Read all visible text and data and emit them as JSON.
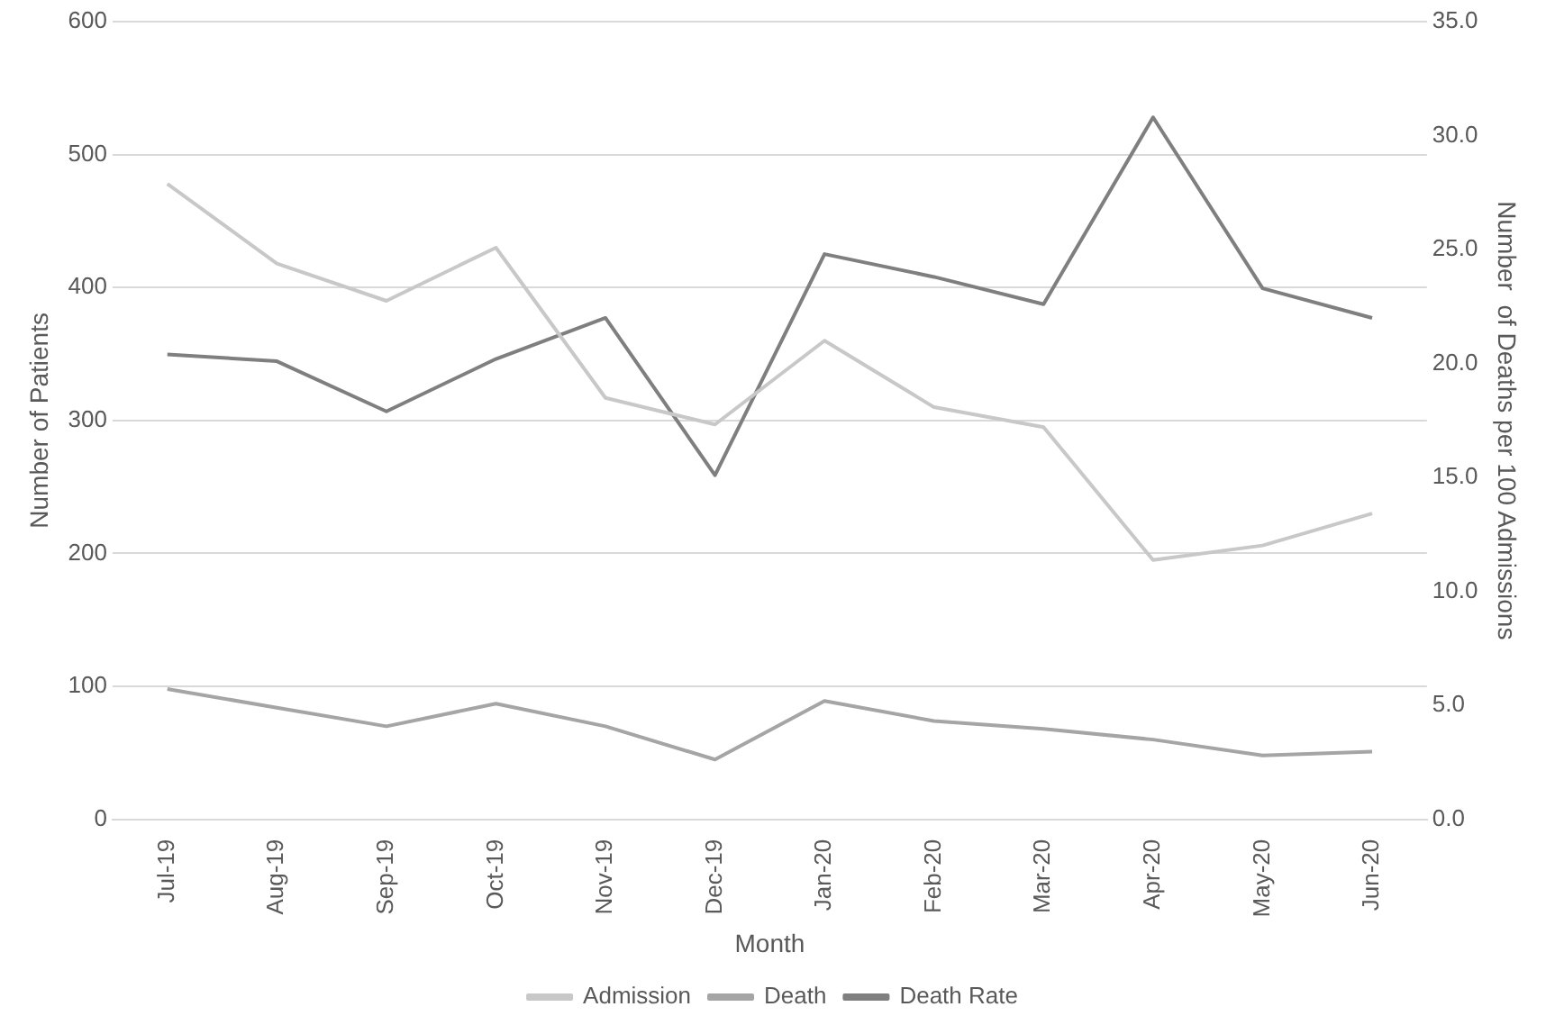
{
  "chart_data": {
    "type": "line",
    "xlabel": "Month",
    "ylabel": "Number of Patients",
    "y2label": "Number  of Deaths per 100 Admissions",
    "categories": [
      "Jul-19",
      "Aug-19",
      "Sep-19",
      "Oct-19",
      "Nov-19",
      "Dec-19",
      "Jan-20",
      "Feb-20",
      "Mar-20",
      "Apr-20",
      "May-20",
      "Jun-20"
    ],
    "series": [
      {
        "name": "Admission",
        "color": "#c8c8c8",
        "values": [
          478,
          418,
          390,
          430,
          317,
          297,
          360,
          310,
          295,
          195,
          206,
          230
        ]
      },
      {
        "name": "Death",
        "color": "#a5a5a5",
        "values": [
          98,
          84,
          70,
          87,
          70,
          45,
          89,
          74,
          68,
          60,
          48,
          51
        ]
      },
      {
        "name": "Death Rate",
        "color": "#7f7f7f",
        "axis": "y2",
        "values": [
          20.4,
          20.1,
          17.9,
          20.2,
          22.0,
          15.1,
          24.8,
          23.8,
          22.6,
          30.8,
          23.3,
          22.0
        ]
      }
    ],
    "ylim": [
      0,
      600
    ],
    "yticks": [
      0,
      100,
      200,
      300,
      400,
      500,
      600
    ],
    "y2lim": [
      0,
      35
    ],
    "y2ticks": [
      {
        "value": 0,
        "label": "0.0"
      },
      {
        "value": 5,
        "label": "5.0"
      },
      {
        "value": 10,
        "label": "10.0"
      },
      {
        "value": 15,
        "label": "15.0"
      },
      {
        "value": 20,
        "label": "20.0"
      },
      {
        "value": 25,
        "label": "25.0"
      },
      {
        "value": 30,
        "label": "30.0"
      },
      {
        "value": 35,
        "label": "35.0"
      }
    ],
    "grid": "y",
    "legend": "bottom",
    "marker": "none",
    "line_style": "solid"
  }
}
